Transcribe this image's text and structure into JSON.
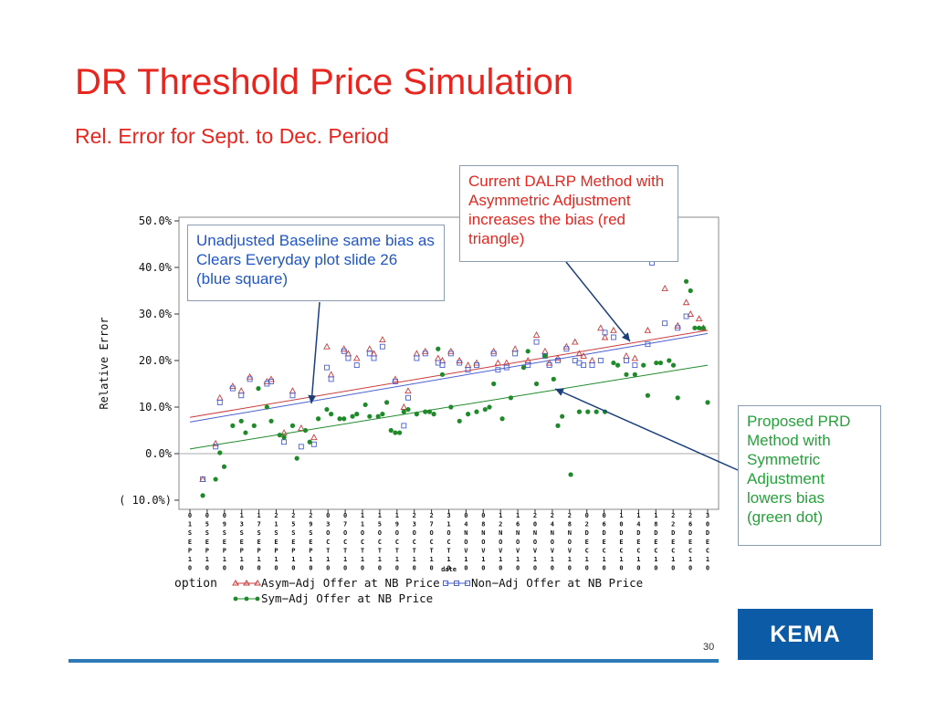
{
  "slide": {
    "title": "DR Threshold Price Simulation",
    "subtitle": "Rel. Error for Sept. to Dec. Period",
    "page_number": "30",
    "logo_text": "KEMA",
    "colors": {
      "title": "#e8261f",
      "footer_line": "#2e7ab8",
      "logo_bg": "#0b5ba7"
    }
  },
  "callouts": {
    "blue": "Unadjusted Baseline same bias as Clears Everyday plot slide 26  (blue square)",
    "red": "Current DALRP Method with Asymmetric Adjustment  increases the bias (red triangle)",
    "green": "Proposed PRD Method with Symmetric Adjustment lowers bias (green dot)"
  },
  "chart_data": {
    "type": "scatter",
    "ylabel": "Relative Error",
    "xlabel": "date",
    "ylim": [
      -10,
      50
    ],
    "y_ticks": [
      "50.0%",
      "40.0%",
      "30.0%",
      "20.0%",
      "10.0%",
      "0.0%",
      "( 10.0%)"
    ],
    "y_tick_values": [
      50,
      40,
      30,
      20,
      10,
      0,
      -10
    ],
    "x_tick_labels": [
      "01SEP10",
      "05SEP10",
      "09SEP10",
      "13SEP10",
      "17SEP10",
      "21SEP10",
      "25SEP10",
      "29SEP10",
      "03OCT10",
      "07OCT10",
      "11OCT10",
      "15OCT10",
      "19OCT10",
      "23OCT10",
      "27OCT10",
      "31OCT10",
      "04NOV10",
      "08NOV10",
      "12NOV10",
      "16NOV10",
      "20NOV10",
      "24NOV10",
      "28NOV10",
      "02DEC10",
      "06DEC10",
      "10DEC10",
      "14DEC10",
      "18DEC10",
      "22DEC10",
      "26DEC10",
      "30DEC10"
    ],
    "x_range_days": [
      0,
      121
    ],
    "legend": {
      "label": "option",
      "entries": [
        {
          "name": "Asym−Adj Offer at NB Price",
          "marker": "triangle",
          "color": "#cc3b3b"
        },
        {
          "name": "Non−Adj  Offer at NB Price",
          "marker": "square",
          "color": "#4a5fd0"
        },
        {
          "name": "Sym−Adj  Offer at NB Price",
          "marker": "dot",
          "color": "#1f8a2a"
        }
      ]
    },
    "series": [
      {
        "name": "Asym−Adj Offer at NB Price",
        "color": "#cc3b3b",
        "x": [
          3,
          6,
          7,
          10,
          12,
          14,
          18,
          19,
          22,
          24,
          26,
          29,
          32,
          33,
          36,
          37,
          39,
          42,
          43,
          45,
          48,
          50,
          51,
          53,
          55,
          58,
          59,
          61,
          63,
          65,
          67,
          71,
          72,
          74,
          76,
          79,
          81,
          83,
          84,
          86,
          88,
          90,
          91,
          92,
          94,
          96,
          97,
          99,
          102,
          104,
          107,
          108,
          111,
          114,
          116,
          117,
          119,
          120
        ],
        "y": [
          -5.5,
          2.2,
          12,
          14.5,
          13.5,
          16.5,
          15.5,
          16,
          4.5,
          13.5,
          5.5,
          3.5,
          23,
          17,
          22.5,
          21.5,
          20.5,
          22.5,
          21.5,
          24.5,
          16,
          10,
          13.5,
          21.5,
          22,
          20.5,
          20,
          22,
          20,
          19,
          19.5,
          22,
          19.5,
          19.5,
          22.5,
          20,
          25.5,
          22,
          19.5,
          20.5,
          23,
          24,
          21.5,
          21,
          20,
          27,
          25,
          26.5,
          21,
          20.5,
          26.5,
          42,
          35.5,
          27.5,
          32.5,
          30,
          29,
          27
        ]
      },
      {
        "name": "Non−Adj  Offer at NB Price",
        "color": "#4a5fd0",
        "x": [
          3,
          6,
          7,
          10,
          12,
          14,
          18,
          19,
          22,
          24,
          26,
          29,
          32,
          33,
          36,
          37,
          39,
          42,
          43,
          45,
          48,
          50,
          51,
          53,
          55,
          58,
          59,
          61,
          63,
          65,
          67,
          71,
          72,
          74,
          76,
          79,
          81,
          83,
          84,
          86,
          88,
          90,
          91,
          92,
          94,
          96,
          97,
          99,
          102,
          104,
          107,
          108,
          111,
          114,
          116
        ],
        "y": [
          -5.5,
          1.5,
          11,
          14,
          12.5,
          16,
          15,
          15.5,
          2.5,
          12.5,
          1.5,
          2,
          18.5,
          16,
          22,
          20.5,
          19,
          21.5,
          20.5,
          23,
          15.5,
          6,
          12,
          20.5,
          21.5,
          19.5,
          19,
          21.5,
          19.5,
          18,
          19,
          21.5,
          18,
          18.5,
          21.5,
          19,
          24,
          21,
          19,
          20,
          22.5,
          20,
          19.5,
          19,
          19,
          20,
          26,
          25,
          20,
          19,
          23.5,
          41,
          28,
          27,
          29.5
        ]
      },
      {
        "name": "Sym−Adj  Offer at NB Price",
        "color": "#1f8a2a",
        "x": [
          3,
          6,
          7,
          8,
          10,
          12,
          13,
          15,
          16,
          18,
          19,
          21,
          22,
          24,
          25,
          27,
          28,
          30,
          32,
          33,
          35,
          36,
          38,
          39,
          41,
          42,
          44,
          45,
          46,
          47,
          48,
          49,
          50,
          51,
          53,
          55,
          56,
          57,
          58,
          59,
          61,
          63,
          65,
          67,
          69,
          70,
          71,
          73,
          75,
          78,
          79,
          81,
          83,
          85,
          86,
          87,
          89,
          91,
          93,
          95,
          97,
          99,
          100,
          102,
          104,
          106,
          107,
          109,
          110,
          112,
          113,
          114,
          116,
          117,
          118,
          119,
          120,
          121
        ],
        "y": [
          -9,
          -5.5,
          0.2,
          -2.8,
          6,
          7,
          4.5,
          6,
          14,
          10,
          7,
          4,
          3.5,
          6,
          -1,
          5,
          2.5,
          7.5,
          9.5,
          8.5,
          7.5,
          7.5,
          8,
          8.5,
          10.5,
          8,
          8,
          8.5,
          11,
          5,
          4.5,
          4.5,
          9,
          9.5,
          8.5,
          9,
          9,
          8.5,
          22.5,
          17,
          10,
          7,
          8.5,
          9,
          9.5,
          10,
          15,
          7.5,
          12,
          18.5,
          22,
          15,
          21,
          16,
          6,
          8,
          -4.5,
          9,
          9,
          9,
          9,
          19.5,
          19,
          17,
          17,
          19,
          12.5,
          19.5,
          19.5,
          20,
          19,
          12,
          37,
          35,
          27,
          27,
          27,
          11
        ]
      }
    ],
    "trend_lines": [
      {
        "name": "Asym−Adj Offer at NB Price",
        "color": "#cc3b3b",
        "y_start": 7.8,
        "y_end": 26.5
      },
      {
        "name": "Non−Adj  Offer at NB Price",
        "color": "#4a5fd0",
        "y_start": 6.8,
        "y_end": 25.8
      },
      {
        "name": "Sym−Adj  Offer at NB Price",
        "color": "#1f8a2a",
        "y_start": 1.0,
        "y_end": 19.0
      }
    ]
  }
}
